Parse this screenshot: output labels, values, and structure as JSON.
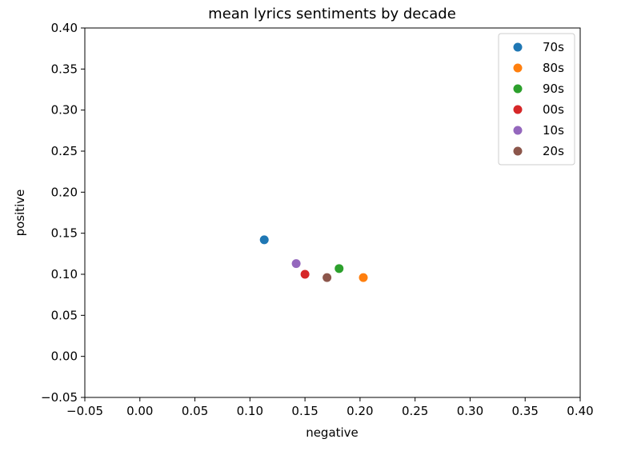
{
  "chart_data": {
    "type": "scatter",
    "title": "mean lyrics sentiments by decade",
    "xlabel": "negative",
    "ylabel": "positive",
    "xlim": [
      -0.05,
      0.4
    ],
    "ylim": [
      -0.05,
      0.4
    ],
    "xticks": [
      "−0.05",
      "0.00",
      "0.05",
      "0.10",
      "0.15",
      "0.20",
      "0.25",
      "0.30",
      "0.35",
      "0.40"
    ],
    "yticks": [
      "−0.05",
      "0.00",
      "0.05",
      "0.10",
      "0.15",
      "0.20",
      "0.25",
      "0.30",
      "0.35",
      "0.40"
    ],
    "grid": false,
    "legend_position": "top-right",
    "series": [
      {
        "name": "70s",
        "color": "#1f77b4",
        "points": [
          {
            "x": 0.113,
            "y": 0.142
          }
        ]
      },
      {
        "name": "80s",
        "color": "#ff7f0e",
        "points": [
          {
            "x": 0.203,
            "y": 0.096
          }
        ]
      },
      {
        "name": "90s",
        "color": "#2ca02c",
        "points": [
          {
            "x": 0.181,
            "y": 0.107
          }
        ]
      },
      {
        "name": "00s",
        "color": "#d62728",
        "points": [
          {
            "x": 0.15,
            "y": 0.1
          }
        ]
      },
      {
        "name": "10s",
        "color": "#9467bd",
        "points": [
          {
            "x": 0.142,
            "y": 0.113
          }
        ]
      },
      {
        "name": "20s",
        "color": "#8c564b",
        "points": [
          {
            "x": 0.17,
            "y": 0.096
          }
        ]
      }
    ]
  }
}
